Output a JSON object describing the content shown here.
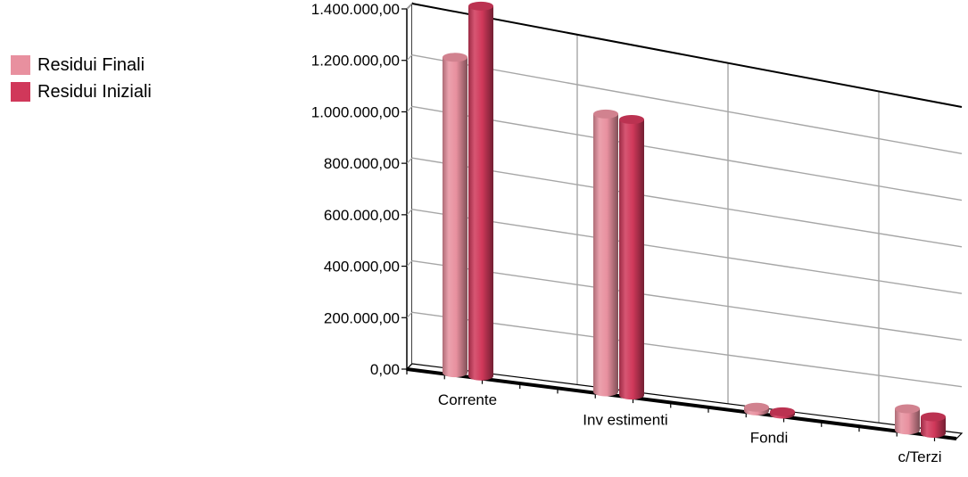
{
  "chart_data": {
    "type": "bar",
    "title": "",
    "xlabel": "",
    "ylabel": "",
    "categories": [
      "Corrente",
      "Inv estimenti",
      "Fondi",
      "c/Terzi"
    ],
    "ylim": [
      0,
      1400000
    ],
    "yticks": [
      "0,00",
      "200.000,00",
      "400.000,00",
      "600.000,00",
      "800.000,00",
      "1.000.000,00",
      "1.200.000,00",
      "1.400.000,00"
    ],
    "grid": true,
    "legend_position": "left",
    "series": [
      {
        "name": "Residui Finali",
        "color": "#E8909F",
        "values": [
          1235000,
          1117000,
          15000,
          90000
        ]
      },
      {
        "name": "Residui Iniziali",
        "color": "#D0385A",
        "values": [
          1455000,
          1113000,
          10000,
          70000
        ]
      }
    ]
  }
}
